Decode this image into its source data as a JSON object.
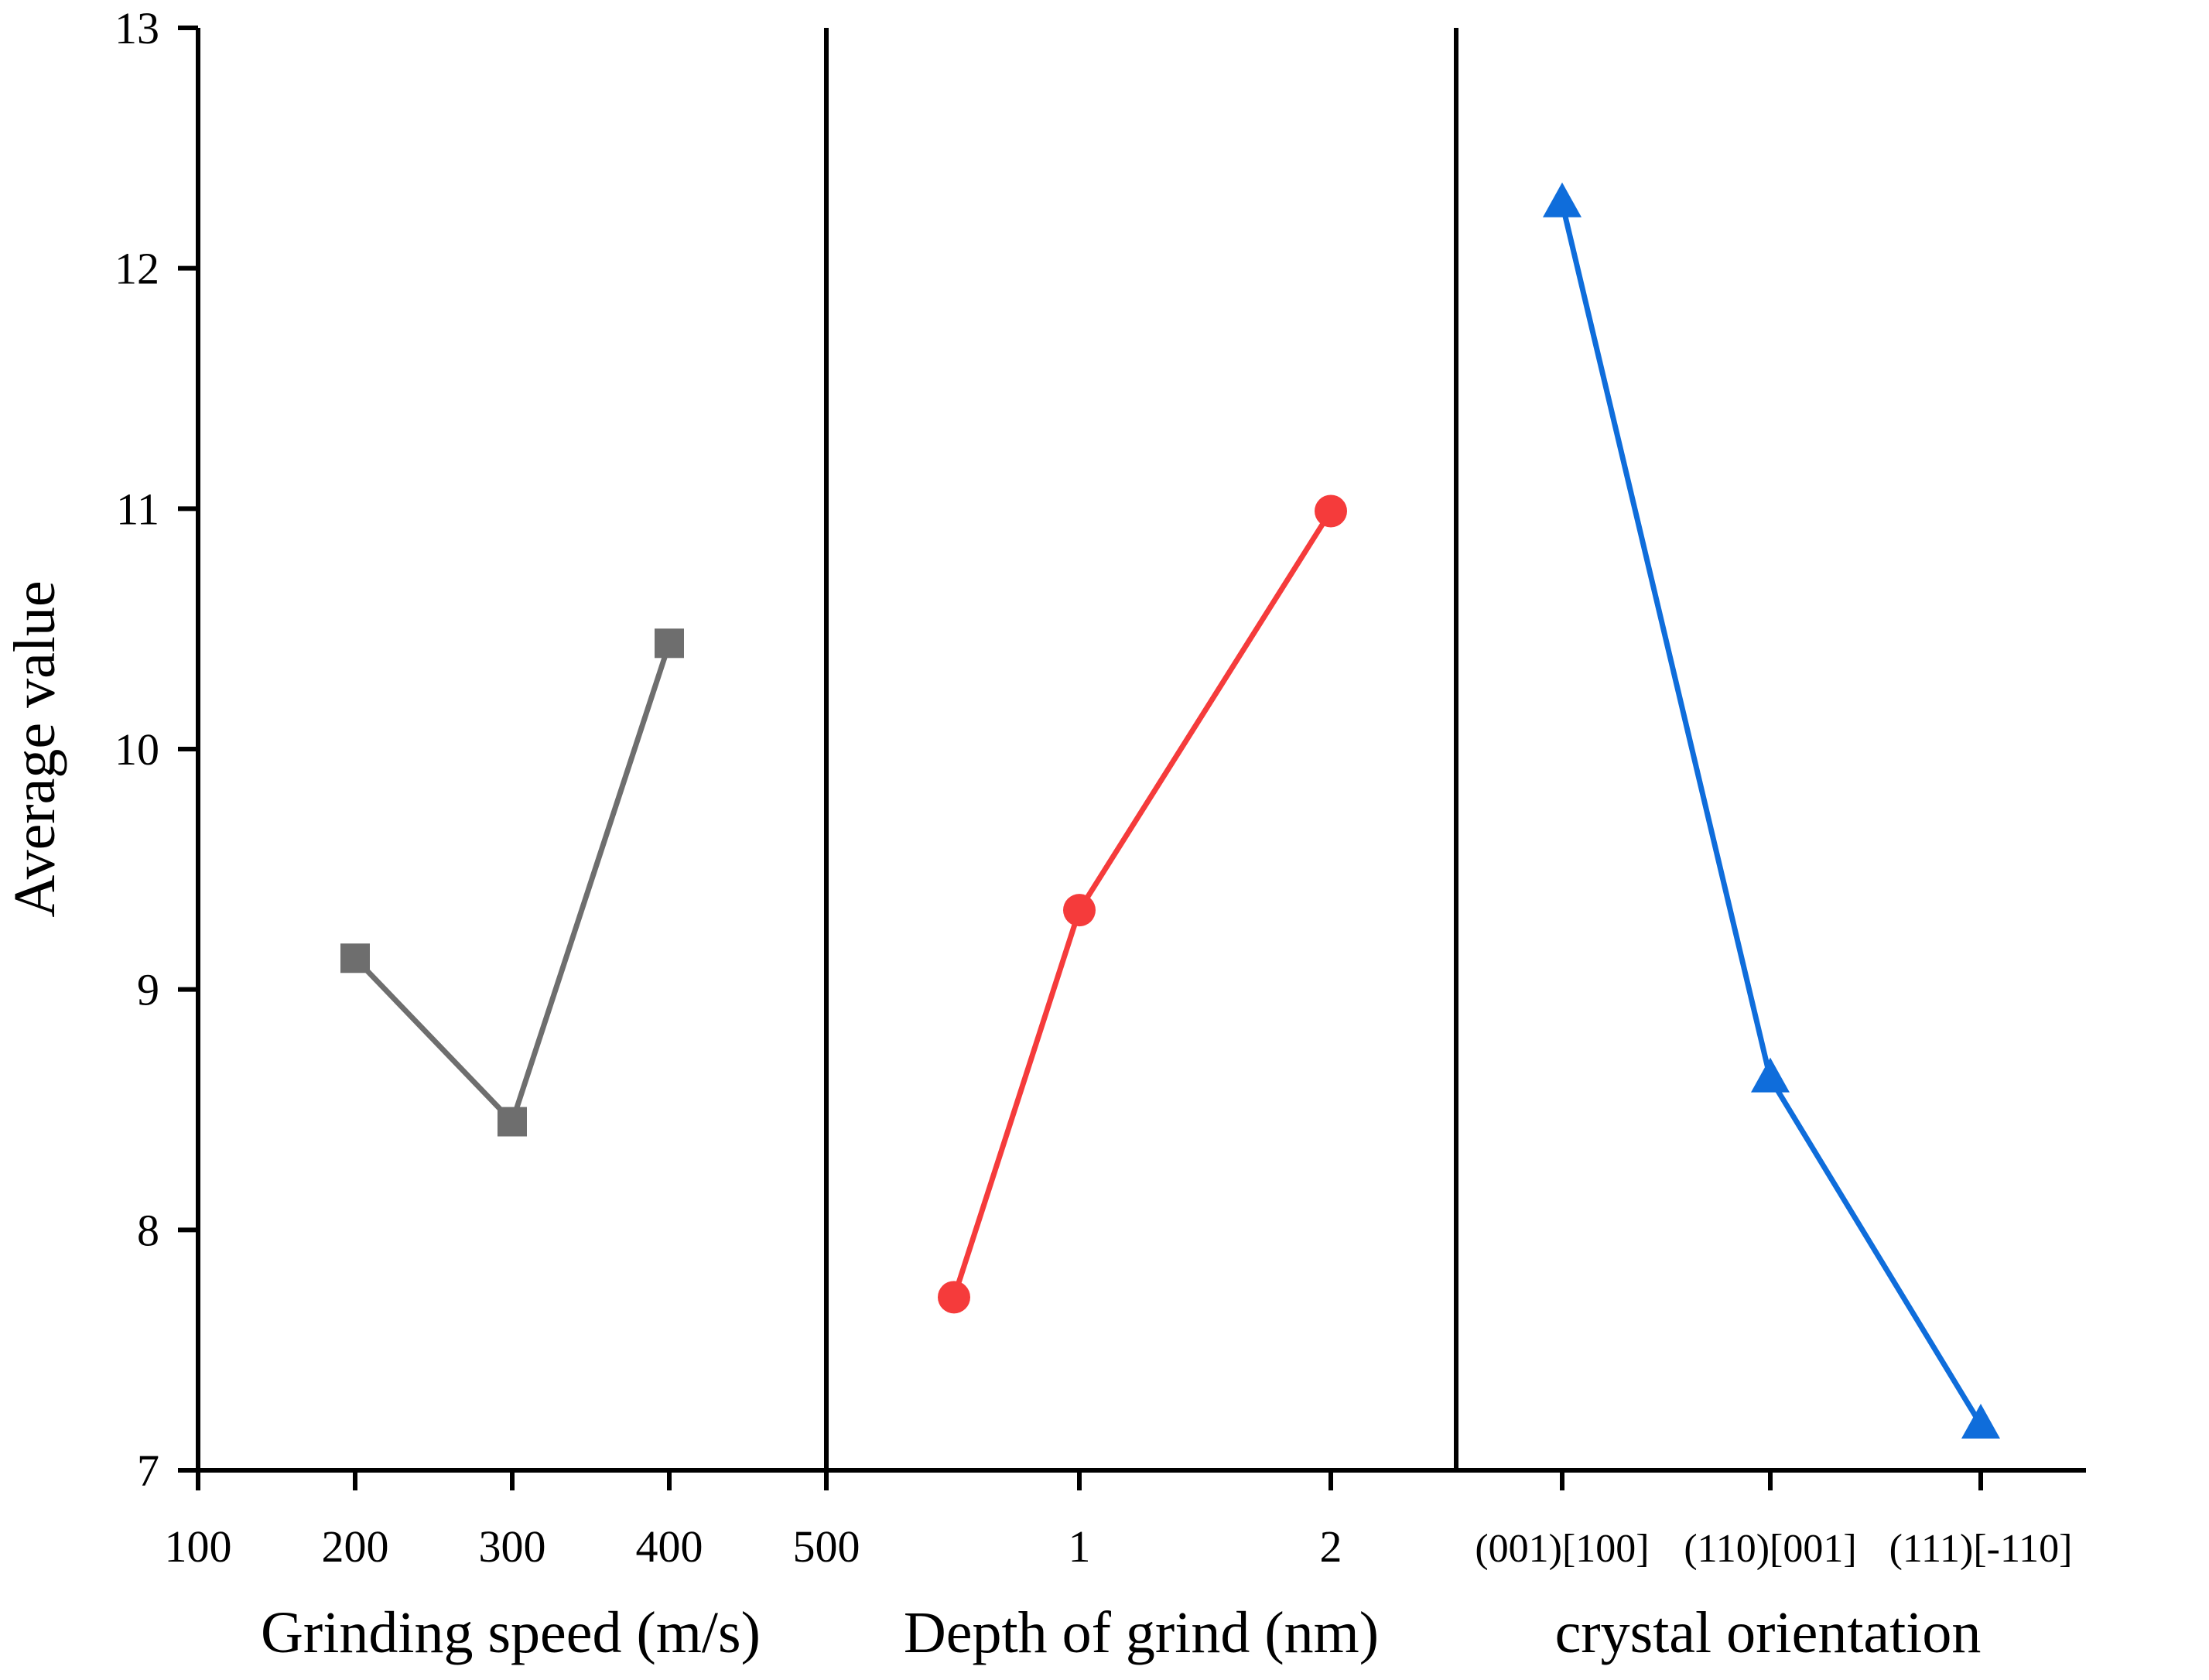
{
  "chart_data": {
    "type": "line",
    "ylabel": "Average value",
    "ylim": [
      7,
      13
    ],
    "yticks": [
      "7",
      "8",
      "9",
      "10",
      "11",
      "12",
      "13"
    ],
    "grid": false,
    "panels": [
      {
        "xlabel": "Grinding speed (m/s)",
        "tick_labels": [
          "100",
          "200",
          "300",
          "400",
          "500"
        ],
        "series": [
          {
            "name": "Grinding speed",
            "marker": "square",
            "color": "#6e6e6e",
            "x": [
              200,
              300,
              400
            ],
            "values": [
              9.13,
              8.45,
              10.44
            ]
          }
        ]
      },
      {
        "xlabel": "Depth of grind (nm)",
        "tick_labels": [
          "1",
          "2"
        ],
        "series": [
          {
            "name": "Depth of grind",
            "marker": "circle",
            "color": "#f53b3b",
            "x": [
              0.5,
              1,
              2
            ],
            "values": [
              7.72,
              9.33,
              10.99
            ]
          }
        ]
      },
      {
        "xlabel": "crystal orientation",
        "tick_labels": [
          "(001)[100]",
          "(110)[001]",
          "(111)[-110]"
        ],
        "series": [
          {
            "name": "crystal orientation",
            "marker": "triangle",
            "color": "#0f6ddb",
            "x": [
              "(001)[100]",
              "(110)[001]",
              "(111)[-110]"
            ],
            "values": [
              12.27,
              8.63,
              7.19
            ]
          }
        ]
      }
    ]
  }
}
